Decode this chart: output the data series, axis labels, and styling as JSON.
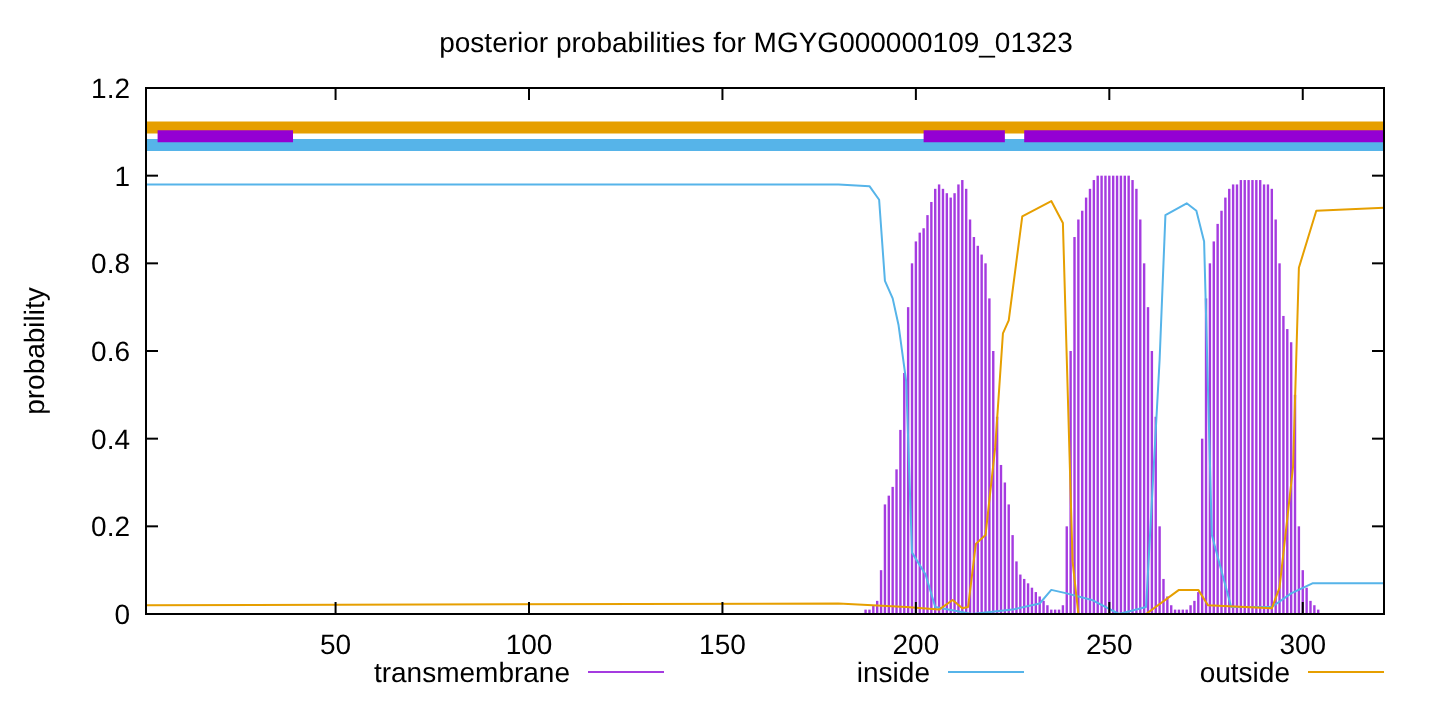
{
  "chart_data": {
    "type": "line",
    "title": "posterior probabilities for MGYG000000109_01323",
    "ylabel": "probability",
    "xlim": [
      1,
      321
    ],
    "ylim": [
      0,
      1.2
    ],
    "xticks": [
      50,
      100,
      150,
      200,
      250,
      300
    ],
    "yticks": [
      0,
      0.2,
      0.4,
      0.6,
      0.8,
      1,
      1.2
    ],
    "grid": false,
    "legend": "bottom",
    "series": [
      {
        "name": "transmembrane",
        "type": "bar",
        "color": "#a53be0",
        "x": [
          187,
          188,
          189,
          190,
          191,
          192,
          193,
          194,
          195,
          196,
          197,
          198,
          199,
          200,
          201,
          202,
          203,
          204,
          205,
          206,
          207,
          208,
          209,
          210,
          211,
          212,
          213,
          214,
          215,
          216,
          217,
          218,
          219,
          220,
          221,
          222,
          223,
          224,
          225,
          226,
          227,
          228,
          229,
          230,
          231,
          232,
          233,
          234,
          235,
          236,
          237,
          238,
          239,
          240,
          241,
          242,
          243,
          244,
          245,
          246,
          247,
          248,
          249,
          250,
          251,
          252,
          253,
          254,
          255,
          256,
          257,
          258,
          259,
          260,
          261,
          262,
          263,
          264,
          265,
          266,
          267,
          268,
          269,
          270,
          271,
          272,
          273,
          274,
          275,
          276,
          277,
          278,
          279,
          280,
          281,
          282,
          283,
          284,
          285,
          286,
          287,
          288,
          289,
          290,
          291,
          292,
          293,
          294,
          295,
          296,
          297,
          298,
          299,
          300,
          301,
          302,
          303,
          304
        ],
        "values": [
          0.01,
          0.01,
          0.02,
          0.03,
          0.1,
          0.25,
          0.27,
          0.29,
          0.33,
          0.42,
          0.55,
          0.7,
          0.8,
          0.85,
          0.87,
          0.88,
          0.91,
          0.94,
          0.97,
          0.98,
          0.97,
          0.96,
          0.95,
          0.96,
          0.98,
          0.99,
          0.97,
          0.9,
          0.86,
          0.84,
          0.82,
          0.8,
          0.72,
          0.6,
          0.45,
          0.34,
          0.3,
          0.25,
          0.18,
          0.12,
          0.09,
          0.08,
          0.07,
          0.06,
          0.05,
          0.04,
          0.03,
          0.02,
          0.01,
          0.01,
          0.01,
          0.02,
          0.2,
          0.6,
          0.86,
          0.9,
          0.92,
          0.95,
          0.97,
          0.99,
          1,
          1,
          1,
          1,
          1,
          1,
          1,
          1,
          1,
          0.99,
          0.97,
          0.9,
          0.8,
          0.7,
          0.6,
          0.45,
          0.2,
          0.08,
          0.04,
          0.02,
          0.01,
          0.01,
          0.01,
          0.01,
          0.02,
          0.03,
          0.05,
          0.4,
          0.72,
          0.8,
          0.85,
          0.89,
          0.92,
          0.95,
          0.97,
          0.98,
          0.98,
          0.99,
          0.99,
          0.99,
          0.99,
          0.99,
          0.99,
          0.98,
          0.98,
          0.97,
          0.9,
          0.8,
          0.68,
          0.65,
          0.62,
          0.5,
          0.2,
          0.1,
          0.06,
          0.03,
          0.02,
          0.01
        ]
      },
      {
        "name": "inside",
        "color": "#56b4e9",
        "x": [
          1,
          180,
          188,
          190.5,
          192,
          194,
          195.5,
          197.5,
          199,
          202.5,
          205,
          214.5,
          225,
          232,
          235,
          239,
          245.5,
          252.5,
          259.5,
          263,
          264.5,
          270,
          272.5,
          274.5,
          276.5,
          281.5,
          292,
          297,
          302.5,
          321
        ],
        "values": [
          0.98,
          0.98,
          0.976,
          0.945,
          0.76,
          0.72,
          0.66,
          0.53,
          0.14,
          0.09,
          0.016,
          0,
          0.01,
          0.024,
          0.055,
          0.047,
          0.032,
          0,
          0.016,
          0.58,
          0.91,
          0.937,
          0.92,
          0.85,
          0.18,
          0.016,
          0.016,
          0.047,
          0.07,
          0.07
        ]
      },
      {
        "name": "outside",
        "color": "#e69f00",
        "x": [
          1,
          180,
          197.5,
          206,
          209.5,
          212,
          213.5,
          215.5,
          218,
          220.5,
          222.5,
          224,
          227.5,
          235,
          238,
          240.5,
          242,
          259.5,
          268,
          273,
          275.5,
          292,
          294,
          297.5,
          299,
          303.5,
          321
        ],
        "values": [
          0.02,
          0.024,
          0.016,
          0.01,
          0.032,
          0.013,
          0.016,
          0.16,
          0.18,
          0.38,
          0.64,
          0.67,
          0.907,
          0.942,
          0.892,
          0.12,
          0,
          0,
          0.055,
          0.055,
          0.02,
          0.013,
          0.06,
          0.336,
          0.79,
          0.92,
          0.927
        ]
      },
      {
        "color": "#e69f00",
        "x": [
          1,
          321
        ],
        "values": [
          1.11,
          1.11
        ]
      },
      {
        "color": "#56b4e9",
        "x": [
          1,
          321
        ],
        "values": [
          1.07,
          1.07
        ]
      },
      {
        "color": "#9400d3",
        "x": [
          4,
          39
        ],
        "values": [
          1.09,
          1.09
        ]
      },
      {
        "color": "#9400d3",
        "x": [
          202,
          223
        ],
        "values": [
          1.09,
          1.09
        ]
      },
      {
        "color": "#9400d3",
        "x": [
          228,
          321
        ],
        "values": [
          1.09,
          1.09
        ]
      }
    ]
  }
}
